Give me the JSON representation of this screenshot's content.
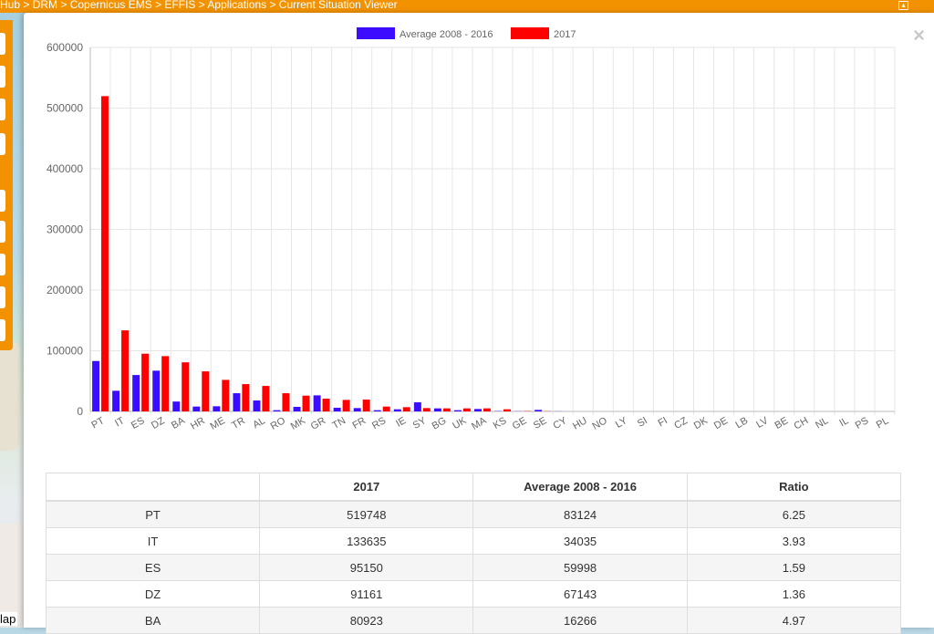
{
  "breadcrumb": "Hub > DRM > Copernicus EMS > EFFIS > Applications > Current Situation Viewer",
  "map": {
    "label": "lap"
  },
  "modal": {
    "close_label": "×"
  },
  "colors": {
    "avg": "#3b0cff",
    "current": "#ff0000",
    "accent": "#f29200"
  },
  "chart_data": {
    "type": "bar",
    "categories": [
      "PT",
      "IT",
      "ES",
      "DZ",
      "BA",
      "HR",
      "ME",
      "TR",
      "AL",
      "RO",
      "MK",
      "GR",
      "TN",
      "FR",
      "RS",
      "IE",
      "SY",
      "BG",
      "UK",
      "MA",
      "KS",
      "GE",
      "SE",
      "CY",
      "HU",
      "NO",
      "LY",
      "SI",
      "FI",
      "CZ",
      "DK",
      "DE",
      "LB",
      "LV",
      "BE",
      "CH",
      "NL",
      "IL",
      "PS",
      "PL"
    ],
    "series": [
      {
        "name": "Average 2008 - 2016",
        "color": "#3b0cff",
        "values": [
          83124,
          34035,
          59998,
          67143,
          16266,
          8000,
          8500,
          30000,
          18000,
          2000,
          7500,
          26500,
          6000,
          5500,
          2000,
          3500,
          15000,
          5000,
          2000,
          4000,
          500,
          300,
          2500,
          200,
          0,
          0,
          0,
          0,
          0,
          0,
          0,
          0,
          0,
          0,
          0,
          0,
          0,
          0,
          0,
          0
        ]
      },
      {
        "name": "2017",
        "color": "#ff0000",
        "values": [
          519748,
          133635,
          95150,
          91161,
          80923,
          66000,
          52000,
          45000,
          42000,
          30000,
          26000,
          21000,
          19000,
          19500,
          8000,
          7000,
          5500,
          5000,
          5000,
          5000,
          3500,
          500,
          300,
          0,
          0,
          0,
          0,
          0,
          0,
          0,
          0,
          0,
          0,
          0,
          0,
          0,
          0,
          0,
          0,
          0
        ]
      }
    ],
    "ylim": [
      0,
      600000
    ],
    "yticks": [
      "0",
      "100000",
      "200000",
      "300000",
      "400000",
      "500000",
      "600000"
    ],
    "grid": true,
    "legend": "top-center"
  },
  "table": {
    "headers": [
      "",
      "2017",
      "Average 2008 - 2016",
      "Ratio"
    ],
    "rows": [
      [
        "PT",
        "519748",
        "83124",
        "6.25"
      ],
      [
        "IT",
        "133635",
        "34035",
        "3.93"
      ],
      [
        "ES",
        "95150",
        "59998",
        "1.59"
      ],
      [
        "DZ",
        "91161",
        "67143",
        "1.36"
      ],
      [
        "BA",
        "80923",
        "16266",
        "4.97"
      ]
    ]
  }
}
